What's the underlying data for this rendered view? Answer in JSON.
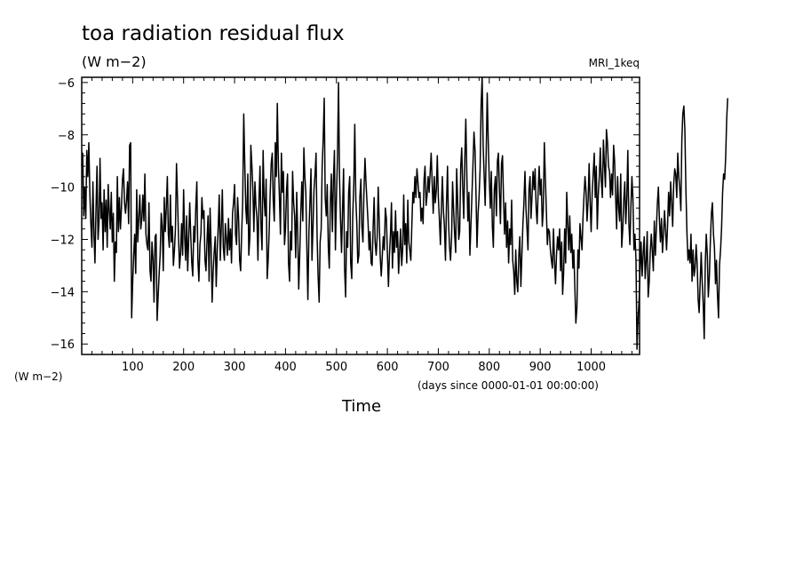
{
  "chart_data": {
    "type": "line",
    "title": "toa radiation residual flux",
    "subtitle": "(W m−2)",
    "dataset_label": "MRI_1keq",
    "ylabel": "(W m−2)",
    "xlabel": "Time",
    "x_units": "(days since 0000-01-01 00:00:00)",
    "xlim": [
      0,
      1095
    ],
    "ylim": [
      -16.4,
      -5.8
    ],
    "x_ticks": [
      100,
      200,
      300,
      400,
      500,
      600,
      700,
      800,
      900,
      1000
    ],
    "y_ticks": [
      -6,
      -8,
      -10,
      -12,
      -14,
      -16
    ],
    "y_tick_labels": [
      "−6",
      "−8",
      "−10",
      "−12",
      "−14",
      "−16"
    ],
    "grid": false,
    "series": [
      {
        "color": "#000000",
        "x_step": 2,
        "values": [
          -9.2,
          -8.7,
          -11.1,
          -10.0,
          -11.2,
          -8.6,
          -9.6,
          -8.3,
          -10.3,
          -11.4,
          -12.3,
          -9.8,
          -11.8,
          -12.9,
          -10.8,
          -9.2,
          -12.0,
          -11.3,
          -8.9,
          -11.2,
          -10.6,
          -12.4,
          -10.1,
          -11.7,
          -10.5,
          -12.3,
          -9.9,
          -10.9,
          -11.6,
          -10.2,
          -12.1,
          -11.0,
          -13.6,
          -12.1,
          -12.5,
          -9.6,
          -11.7,
          -10.4,
          -11.6,
          -10.8,
          -9.7,
          -9.3,
          -10.6,
          -11.0,
          -10.5,
          -9.8,
          -11.4,
          -8.4,
          -8.3,
          -15.0,
          -13.6,
          -12.6,
          -11.8,
          -13.3,
          -10.1,
          -12.1,
          -11.2,
          -10.3,
          -11.6,
          -11.2,
          -10.3,
          -11.3,
          -9.5,
          -11.8,
          -12.2,
          -12.4,
          -10.6,
          -13.2,
          -13.6,
          -12.1,
          -12.8,
          -14.4,
          -11.9,
          -11.8,
          -15.1,
          -14.2,
          -13.3,
          -12.6,
          -11.0,
          -11.5,
          -13.2,
          -10.4,
          -11.7,
          -10.8,
          -9.6,
          -11.8,
          -12.3,
          -10.3,
          -12.1,
          -11.5,
          -13.0,
          -12.4,
          -11.6,
          -9.1,
          -10.4,
          -11.9,
          -13.1,
          -12.5,
          -11.4,
          -12.6,
          -10.1,
          -11.9,
          -12.8,
          -11.1,
          -13.2,
          -12.0,
          -10.6,
          -11.8,
          -12.9,
          -13.4,
          -11.5,
          -12.1,
          -10.7,
          -9.8,
          -12.8,
          -13.6,
          -12.2,
          -11.8,
          -10.4,
          -11.2,
          -10.9,
          -12.8,
          -13.2,
          -12.0,
          -11.1,
          -13.6,
          -10.8,
          -12.3,
          -14.4,
          -13.2,
          -12.5,
          -11.9,
          -13.8,
          -12.4,
          -11.5,
          -10.3,
          -12.8,
          -11.6,
          -10.1,
          -12.3,
          -12.8,
          -11.4,
          -12.0,
          -12.6,
          -11.2,
          -12.4,
          -11.6,
          -12.9,
          -11.0,
          -10.6,
          -9.9,
          -11.8,
          -12.2,
          -10.4,
          -11.2,
          -12.8,
          -13.2,
          -11.7,
          -10.6,
          -7.2,
          -9.0,
          -10.8,
          -11.4,
          -9.5,
          -12.6,
          -11.9,
          -8.4,
          -9.2,
          -10.1,
          -11.7,
          -9.8,
          -10.7,
          -11.2,
          -12.8,
          -10.5,
          -9.2,
          -11.6,
          -12.4,
          -8.6,
          -10.4,
          -11.1,
          -9.7,
          -13.5,
          -12.8,
          -11.6,
          -10.2,
          -9.1,
          -8.7,
          -10.5,
          -11.3,
          -8.3,
          -9.6,
          -6.8,
          -9.2,
          -10.3,
          -11.8,
          -8.7,
          -10.2,
          -9.4,
          -12.2,
          -11.6,
          -10.1,
          -9.5,
          -12.9,
          -13.6,
          -11.7,
          -12.4,
          -9.4,
          -10.6,
          -11.1,
          -12.7,
          -10.2,
          -11.8,
          -13.9,
          -12.5,
          -11.0,
          -9.8,
          -11.3,
          -8.5,
          -9.6,
          -10.2,
          -12.4,
          -14.3,
          -11.7,
          -10.6,
          -9.3,
          -12.8,
          -11.5,
          -10.1,
          -9.5,
          -8.7,
          -11.9,
          -13.4,
          -14.4,
          -12.1,
          -11.6,
          -9.2,
          -8.2,
          -6.6,
          -10.4,
          -11.1,
          -9.9,
          -12.3,
          -13.1,
          -10.6,
          -9.5,
          -11.7,
          -9.8,
          -8.6,
          -12.4,
          -10.3,
          -8.9,
          -6.0,
          -9.6,
          -11.2,
          -12.5,
          -10.9,
          -9.3,
          -13.1,
          -14.2,
          -11.7,
          -12.3,
          -10.2,
          -9.6,
          -12.9,
          -13.5,
          -11.1,
          -9.9,
          -7.6,
          -10.5,
          -11.4,
          -12.9,
          -12.6,
          -10.4,
          -9.7,
          -11.5,
          -12.1,
          -10.2,
          -8.9,
          -9.8,
          -10.6,
          -11.3,
          -12.4,
          -11.7,
          -12.9,
          -13.0,
          -11.5,
          -10.4,
          -12.1,
          -12.6,
          -11.9,
          -10.0,
          -11.3,
          -12.7,
          -13.4,
          -12.6,
          -11.9,
          -12.4,
          -10.8,
          -11.2,
          -12.5,
          -13.8,
          -12.6,
          -11.8,
          -10.6,
          -13.1,
          -11.7,
          -12.5,
          -10.9,
          -12.3,
          -11.7,
          -13.3,
          -12.4,
          -11.6,
          -13.0,
          -12.4,
          -10.3,
          -12.2,
          -11.4,
          -12.9,
          -10.5,
          -12.1,
          -12.4,
          -12.8,
          -11.5,
          -10.2,
          -10.6,
          -9.6,
          -10.4,
          -9.3,
          -9.8,
          -10.4,
          -10.2,
          -11.3,
          -10.8,
          -11.4,
          -9.7,
          -9.2,
          -10.7,
          -10.3,
          -9.6,
          -10.2,
          -9.4,
          -8.7,
          -9.9,
          -11.0,
          -9.6,
          -10.6,
          -10.1,
          -8.8,
          -10.4,
          -11.2,
          -12.2,
          -10.8,
          -9.6,
          -10.9,
          -11.5,
          -12.8,
          -10.7,
          -9.2,
          -11.3,
          -12.3,
          -12.8,
          -11.9,
          -9.8,
          -10.9,
          -11.8,
          -12.5,
          -9.3,
          -10.6,
          -12.0,
          -11.7,
          -9.2,
          -8.5,
          -10.1,
          -11.2,
          -8.9,
          -7.4,
          -9.6,
          -11.3,
          -10.2,
          -12.6,
          -11.4,
          -10.3,
          -9.1,
          -7.9,
          -8.6,
          -10.3,
          -12.3,
          -11.0,
          -10.4,
          -9.3,
          -6.9,
          -5.8,
          -8.4,
          -9.6,
          -10.7,
          -8.6,
          -6.4,
          -8.3,
          -9.7,
          -10.8,
          -9.4,
          -11.5,
          -12.3,
          -10.1,
          -9.6,
          -11.1,
          -9.0,
          -8.7,
          -10.2,
          -11.4,
          -9.1,
          -8.8,
          -10.5,
          -11.8,
          -10.6,
          -12.3,
          -11.3,
          -12.9,
          -11.6,
          -12.2,
          -10.5,
          -12.8,
          -13.2,
          -14.1,
          -12.4,
          -13.6,
          -14.0,
          -12.6,
          -11.9,
          -13.8,
          -12.6,
          -11.4,
          -10.6,
          -9.4,
          -10.8,
          -11.6,
          -12.4,
          -10.1,
          -9.6,
          -11.2,
          -10.3,
          -9.4,
          -10.1,
          -9.3,
          -10.8,
          -11.4,
          -10.1,
          -9.2,
          -10.3,
          -9.7,
          -11.5,
          -10.9,
          -8.3,
          -9.6,
          -10.8,
          -12.2,
          -11.6,
          -11.7,
          -12.4,
          -12.8,
          -13.1,
          -11.6,
          -12.8,
          -13.7,
          -12.6,
          -11.9,
          -12.4,
          -11.6,
          -13.2,
          -12.1,
          -14.1,
          -13.3,
          -11.6,
          -12.9,
          -10.2,
          -11.4,
          -12.4,
          -11.1,
          -12.5,
          -11.8,
          -13.1,
          -12.4,
          -13.9,
          -15.2,
          -14.6,
          -12.4,
          -13.1,
          -11.4,
          -11.9,
          -12.4,
          -11.2,
          -10.3,
          -9.6,
          -10.2,
          -11.3,
          -10.5,
          -9.1,
          -10.6,
          -11.7,
          -10.2,
          -9.5,
          -8.7,
          -10.4,
          -9.2,
          -11.6,
          -10.3,
          -9.6,
          -8.5,
          -9.8,
          -10.4,
          -8.2,
          -9.1,
          -10.0,
          -7.8,
          -8.3,
          -9.2,
          -9.4,
          -10.4,
          -9.5,
          -10.3,
          -8.4,
          -9.0,
          -10.3,
          -11.6,
          -9.6,
          -10.8,
          -11.3,
          -9.5,
          -12.3,
          -11.6,
          -10.5,
          -9.8,
          -11.4,
          -10.4,
          -8.6,
          -11.4,
          -12.2,
          -10.7,
          -9.6,
          -10.4,
          -12.4,
          -11.8,
          -12.8,
          -16.2,
          -15.0,
          -14.4,
          -13.2,
          -12.1,
          -13.4,
          -12.6,
          -11.9,
          -13.5,
          -12.8,
          -11.7,
          -14.2,
          -13.6,
          -12.5,
          -11.8,
          -12.4,
          -13.2,
          -11.3,
          -12.6,
          -11.6,
          -10.6,
          -10.0,
          -11.3,
          -12.1,
          -11.2,
          -12.5,
          -11.8,
          -10.9,
          -11.6,
          -12.4,
          -11.5,
          -10.2,
          -11.1,
          -9.8,
          -10.6,
          -11.5,
          -9.9,
          -9.3,
          -9.5,
          -10.4,
          -8.7,
          -9.6,
          -10.1,
          -10.9,
          -8.2,
          -7.2,
          -6.9,
          -7.8,
          -10.1,
          -11.7,
          -12.8,
          -12.4,
          -12.9,
          -11.8,
          -13.6,
          -12.4,
          -13.4,
          -13.1,
          -12.2,
          -12.9,
          -14.3,
          -14.8,
          -13.7,
          -12.5,
          -13.6,
          -14.5,
          -15.8,
          -12.9,
          -11.8,
          -12.6,
          -14.2,
          -13.4,
          -12.1,
          -11.0,
          -10.6,
          -11.8,
          -12.3,
          -13.7,
          -12.8,
          -14.1,
          -15.0,
          -13.0,
          -12.4,
          -11.6,
          -10.2,
          -9.5,
          -9.7,
          -8.9,
          -7.4,
          -6.6
        ]
      }
    ]
  }
}
